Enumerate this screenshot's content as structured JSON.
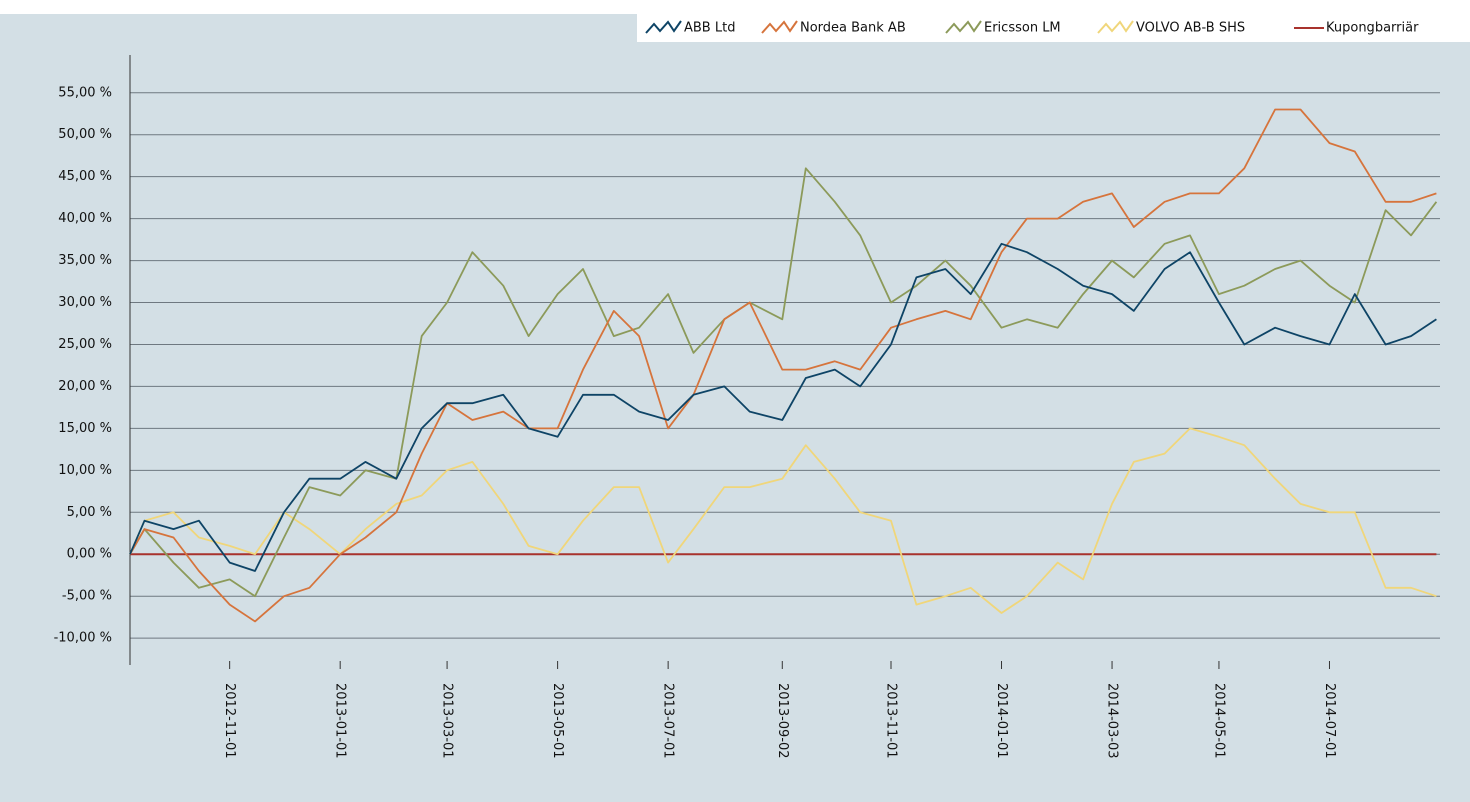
{
  "chart_data": {
    "type": "line",
    "x": [
      "2012-09-07",
      "2012-09-15",
      "2012-10-01",
      "2012-10-15",
      "2012-11-01",
      "2012-11-15",
      "2012-12-01",
      "2012-12-15",
      "2013-01-01",
      "2013-01-15",
      "2013-02-01",
      "2013-02-15",
      "2013-03-01",
      "2013-03-15",
      "2013-04-01",
      "2013-04-15",
      "2013-05-01",
      "2013-05-15",
      "2013-06-01",
      "2013-06-15",
      "2013-07-01",
      "2013-07-15",
      "2013-08-01",
      "2013-08-15",
      "2013-09-02",
      "2013-09-15",
      "2013-10-01",
      "2013-10-15",
      "2013-11-01",
      "2013-11-15",
      "2013-12-01",
      "2013-12-15",
      "2014-01-01",
      "2014-01-15",
      "2014-02-01",
      "2014-02-15",
      "2014-03-03",
      "2014-03-15",
      "2014-04-01",
      "2014-04-15",
      "2014-05-01",
      "2014-05-15",
      "2014-06-01",
      "2014-06-15",
      "2014-07-01",
      "2014-07-15",
      "2014-08-01",
      "2014-08-15",
      "2014-08-29"
    ],
    "series": [
      {
        "name": "ABB Ltd",
        "color": "#0e4466",
        "values": [
          0,
          4,
          3,
          4,
          -1,
          -2,
          5,
          9,
          9,
          11,
          9,
          15,
          18,
          18,
          19,
          15,
          14,
          19,
          19,
          17,
          16,
          19,
          20,
          17,
          16,
          21,
          22,
          20,
          25,
          33,
          34,
          31,
          37,
          36,
          34,
          32,
          31,
          29,
          34,
          36,
          30,
          25,
          27,
          26,
          25,
          31,
          25,
          26,
          28
        ]
      },
      {
        "name": "Nordea Bank AB",
        "color": "#d6743c",
        "values": [
          0,
          3,
          2,
          -2,
          -6,
          -8,
          -5,
          -4,
          0,
          2,
          5,
          12,
          18,
          16,
          17,
          15,
          15,
          22,
          29,
          26,
          15,
          19,
          28,
          30,
          22,
          22,
          23,
          22,
          27,
          28,
          29,
          28,
          36,
          40,
          40,
          42,
          43,
          39,
          42,
          43,
          43,
          46,
          53,
          53,
          49,
          48,
          42,
          42,
          43
        ]
      },
      {
        "name": "Ericsson LM",
        "color": "#8c9a5a",
        "values": [
          0,
          3,
          -1,
          -4,
          -3,
          -5,
          2,
          8,
          7,
          10,
          9,
          26,
          30,
          36,
          32,
          26,
          31,
          34,
          26,
          27,
          31,
          24,
          28,
          30,
          28,
          46,
          42,
          38,
          30,
          32,
          35,
          32,
          27,
          28,
          27,
          31,
          35,
          33,
          37,
          38,
          31,
          32,
          34,
          35,
          32,
          30,
          41,
          38,
          42
        ]
      },
      {
        "name": "VOLVO AB-B SHS",
        "color": "#f0d67a",
        "values": [
          0,
          4,
          5,
          2,
          1,
          0,
          5,
          3,
          0,
          3,
          6,
          7,
          10,
          11,
          6,
          1,
          0,
          4,
          8,
          8,
          -1,
          3,
          8,
          8,
          9,
          13,
          9,
          5,
          4,
          -6,
          -5,
          -4,
          -7,
          -5,
          -1,
          -3,
          6,
          11,
          12,
          15,
          14,
          13,
          9,
          6,
          5,
          5,
          -4,
          -4,
          -5
        ]
      },
      {
        "name": "Kupongbarriär",
        "color": "#a8322d",
        "values": [
          0,
          0,
          0,
          0,
          0,
          0,
          0,
          0,
          0,
          0,
          0,
          0,
          0,
          0,
          0,
          0,
          0,
          0,
          0,
          0,
          0,
          0,
          0,
          0,
          0,
          0,
          0,
          0,
          0,
          0,
          0,
          0,
          0,
          0,
          0,
          0,
          0,
          0,
          0,
          0,
          0,
          0,
          0,
          0,
          0,
          0,
          0,
          0,
          0
        ]
      }
    ],
    "xlim": [
      "2012-09-07",
      "2014-08-31"
    ],
    "xticks": [
      "2012-11-01",
      "2013-01-01",
      "2013-03-01",
      "2013-05-01",
      "2013-07-01",
      "2013-09-02",
      "2013-11-01",
      "2014-01-01",
      "2014-03-03",
      "2014-05-01",
      "2014-07-01"
    ],
    "ylim": [
      -13.2,
      59.5
    ],
    "yticks": [
      {
        "value": -10,
        "label": "-10,00 %"
      },
      {
        "value": -5,
        "label": "-5,00 %"
      },
      {
        "value": 0,
        "label": "0,00 %"
      },
      {
        "value": 5,
        "label": "5,00 %"
      },
      {
        "value": 10,
        "label": "10,00 %"
      },
      {
        "value": 15,
        "label": "15,00 %"
      },
      {
        "value": 20,
        "label": "20,00 %"
      },
      {
        "value": 25,
        "label": "25,00 %"
      },
      {
        "value": 30,
        "label": "30,00 %"
      },
      {
        "value": 35,
        "label": "35,00 %"
      },
      {
        "value": 40,
        "label": "40,00 %"
      },
      {
        "value": 45,
        "label": "45,00 %"
      },
      {
        "value": 50,
        "label": "50,00 %"
      },
      {
        "value": 55,
        "label": "55,00 %"
      }
    ],
    "grid": true,
    "legend": "top-right"
  }
}
